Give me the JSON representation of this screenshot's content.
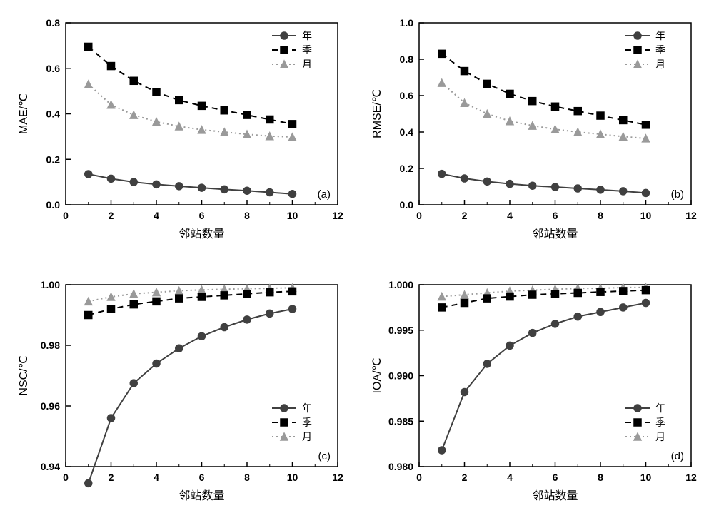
{
  "global": {
    "xlabel": "邻站数量",
    "x_values": [
      1,
      2,
      3,
      4,
      5,
      6,
      7,
      8,
      9,
      10
    ],
    "xlim": [
      0,
      12
    ],
    "xtick_step": 2,
    "background_color": "#ffffff",
    "axis_color": "#000000",
    "tick_fontsize": 14,
    "label_fontsize": 16,
    "line_width": 2,
    "marker_size": 5,
    "legend_items": [
      {
        "label": "年",
        "marker": "circle",
        "color": "#404040",
        "fill": "#404040",
        "dash": "solid"
      },
      {
        "label": "季",
        "marker": "square",
        "color": "#000000",
        "fill": "#000000",
        "dash": "dash"
      },
      {
        "label": "月",
        "marker": "triangle",
        "color": "#9a9a9a",
        "fill": "#9a9a9a",
        "dash": "dot"
      }
    ]
  },
  "panels": {
    "a": {
      "tag": "(a)",
      "ylabel": "MAE/℃",
      "ylim": [
        0.0,
        0.8
      ],
      "ytick_step": 0.2,
      "y_decimals": 1,
      "legend_pos": "top-right",
      "series": {
        "year": [
          0.135,
          0.115,
          0.1,
          0.09,
          0.082,
          0.075,
          0.068,
          0.062,
          0.055,
          0.048
        ],
        "season": [
          0.695,
          0.61,
          0.545,
          0.495,
          0.46,
          0.435,
          0.415,
          0.395,
          0.375,
          0.355
        ],
        "month": [
          0.53,
          0.44,
          0.395,
          0.365,
          0.345,
          0.33,
          0.32,
          0.31,
          0.302,
          0.298
        ]
      }
    },
    "b": {
      "tag": "(b)",
      "ylabel": "RMSE/℃",
      "ylim": [
        0.0,
        1.0
      ],
      "ytick_step": 0.2,
      "y_decimals": 1,
      "legend_pos": "top-right",
      "series": {
        "year": [
          0.17,
          0.145,
          0.128,
          0.115,
          0.105,
          0.098,
          0.09,
          0.083,
          0.075,
          0.065
        ],
        "season": [
          0.83,
          0.735,
          0.665,
          0.61,
          0.57,
          0.54,
          0.515,
          0.49,
          0.465,
          0.44
        ],
        "month": [
          0.67,
          0.56,
          0.5,
          0.46,
          0.435,
          0.415,
          0.4,
          0.388,
          0.375,
          0.365
        ]
      }
    },
    "c": {
      "tag": "(c)",
      "ylabel": "NSC/℃",
      "ylim": [
        0.94,
        1.0
      ],
      "ytick_step": 0.02,
      "y_decimals": 2,
      "legend_pos": "bottom-right",
      "series": {
        "year": [
          0.9345,
          0.956,
          0.9675,
          0.974,
          0.979,
          0.983,
          0.986,
          0.9885,
          0.9905,
          0.992
        ],
        "season": [
          0.99,
          0.992,
          0.9935,
          0.9945,
          0.9955,
          0.996,
          0.9965,
          0.997,
          0.9975,
          0.9978
        ],
        "month": [
          0.9945,
          0.996,
          0.997,
          0.9975,
          0.998,
          0.9983,
          0.9985,
          0.9987,
          0.9988,
          0.999
        ]
      }
    },
    "d": {
      "tag": "(d)",
      "ylabel": "IOA/℃",
      "ylim": [
        0.98,
        1.0
      ],
      "ytick_step": 0.005,
      "y_decimals": 3,
      "legend_pos": "bottom-right",
      "series": {
        "year": [
          0.9818,
          0.9882,
          0.9913,
          0.9933,
          0.9947,
          0.9957,
          0.9965,
          0.997,
          0.9975,
          0.998
        ],
        "season": [
          0.9975,
          0.998,
          0.9985,
          0.9987,
          0.9989,
          0.999,
          0.9991,
          0.9992,
          0.9993,
          0.9994
        ],
        "month": [
          0.9987,
          0.9989,
          0.9991,
          0.9993,
          0.9994,
          0.9995,
          0.9996,
          0.9996,
          0.9997,
          0.9997
        ]
      }
    }
  }
}
